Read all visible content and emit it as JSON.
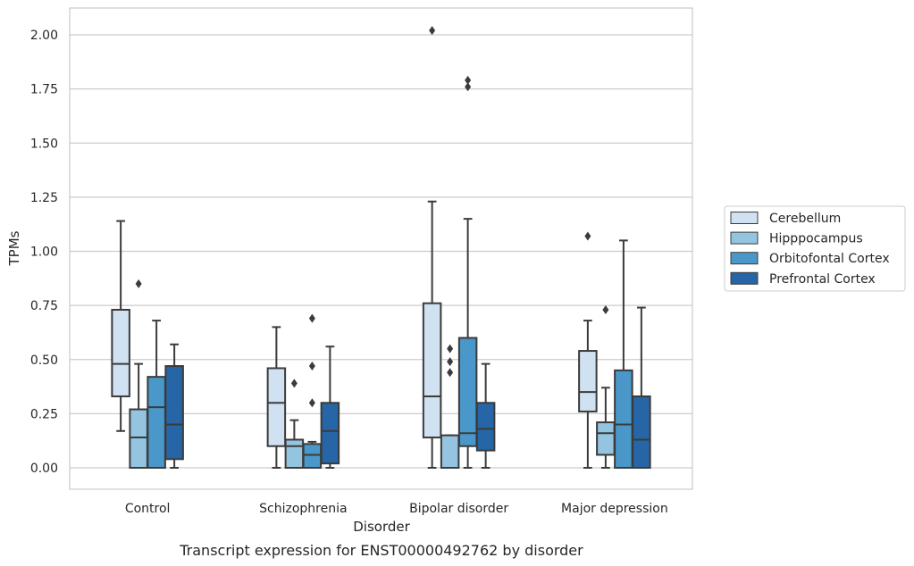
{
  "chart_data": {
    "type": "boxplot",
    "title": "",
    "caption": "Transcript expression for ENST00000492762 by disorder",
    "xlabel": "Disorder",
    "ylabel": "TPMs",
    "ylim": [
      -0.1,
      2.12
    ],
    "yticks": [
      0.0,
      0.25,
      0.5,
      0.75,
      1.0,
      1.25,
      1.5,
      1.75,
      2.0
    ],
    "ytick_labels": [
      "0.00",
      "0.25",
      "0.50",
      "0.75",
      "1.00",
      "1.25",
      "1.50",
      "1.75",
      "2.00"
    ],
    "grid": true,
    "legend_position": "right-outside",
    "categories": [
      "Control",
      "Schizophrenia",
      "Bipolar disorder",
      "Major depression"
    ],
    "series": [
      {
        "name": "Cerebellum",
        "color": "#d0e1f2",
        "boxes": [
          {
            "whislo": 0.17,
            "q1": 0.33,
            "med": 0.48,
            "q3": 0.73,
            "whishi": 1.14,
            "fliers": []
          },
          {
            "whislo": 0.0,
            "q1": 0.1,
            "med": 0.3,
            "q3": 0.46,
            "whishi": 0.65,
            "fliers": []
          },
          {
            "whislo": 0.0,
            "q1": 0.14,
            "med": 0.33,
            "q3": 0.76,
            "whishi": 1.23,
            "fliers": [
              2.02
            ]
          },
          {
            "whislo": 0.0,
            "q1": 0.26,
            "med": 0.35,
            "q3": 0.54,
            "whishi": 0.68,
            "fliers": [
              1.07
            ]
          }
        ]
      },
      {
        "name": "Hipppocampus",
        "color": "#94c4df",
        "boxes": [
          {
            "whislo": 0.0,
            "q1": 0.0,
            "med": 0.14,
            "q3": 0.27,
            "whishi": 0.48,
            "fliers": [
              0.85
            ]
          },
          {
            "whislo": 0.0,
            "q1": 0.0,
            "med": 0.1,
            "q3": 0.13,
            "whishi": 0.22,
            "fliers": [
              0.39
            ]
          },
          {
            "whislo": 0.0,
            "q1": 0.0,
            "med": 0.0,
            "q3": 0.15,
            "whishi": 0.15,
            "fliers": [
              0.44,
              0.49,
              0.55
            ]
          },
          {
            "whislo": 0.0,
            "q1": 0.06,
            "med": 0.16,
            "q3": 0.21,
            "whishi": 0.37,
            "fliers": [
              0.73
            ]
          }
        ]
      },
      {
        "name": "Orbitofontal Cortex",
        "color": "#4a98c9",
        "boxes": [
          {
            "whislo": 0.0,
            "q1": 0.0,
            "med": 0.28,
            "q3": 0.42,
            "whishi": 0.68,
            "fliers": []
          },
          {
            "whislo": 0.0,
            "q1": 0.0,
            "med": 0.06,
            "q3": 0.11,
            "whishi": 0.12,
            "fliers": [
              0.3,
              0.47,
              0.69
            ]
          },
          {
            "whislo": 0.0,
            "q1": 0.1,
            "med": 0.16,
            "q3": 0.6,
            "whishi": 1.15,
            "fliers": [
              1.76,
              1.79
            ]
          },
          {
            "whislo": 0.0,
            "q1": 0.0,
            "med": 0.2,
            "q3": 0.45,
            "whishi": 1.05,
            "fliers": []
          }
        ]
      },
      {
        "name": "Prefrontal Cortex",
        "color": "#2666a6",
        "boxes": [
          {
            "whislo": 0.0,
            "q1": 0.04,
            "med": 0.2,
            "q3": 0.47,
            "whishi": 0.57,
            "fliers": []
          },
          {
            "whislo": 0.0,
            "q1": 0.02,
            "med": 0.17,
            "q3": 0.3,
            "whishi": 0.56,
            "fliers": []
          },
          {
            "whislo": 0.0,
            "q1": 0.08,
            "med": 0.18,
            "q3": 0.3,
            "whishi": 0.48,
            "fliers": []
          },
          {
            "whislo": 0.0,
            "q1": 0.0,
            "med": 0.13,
            "q3": 0.33,
            "whishi": 0.74,
            "fliers": []
          }
        ]
      }
    ]
  }
}
